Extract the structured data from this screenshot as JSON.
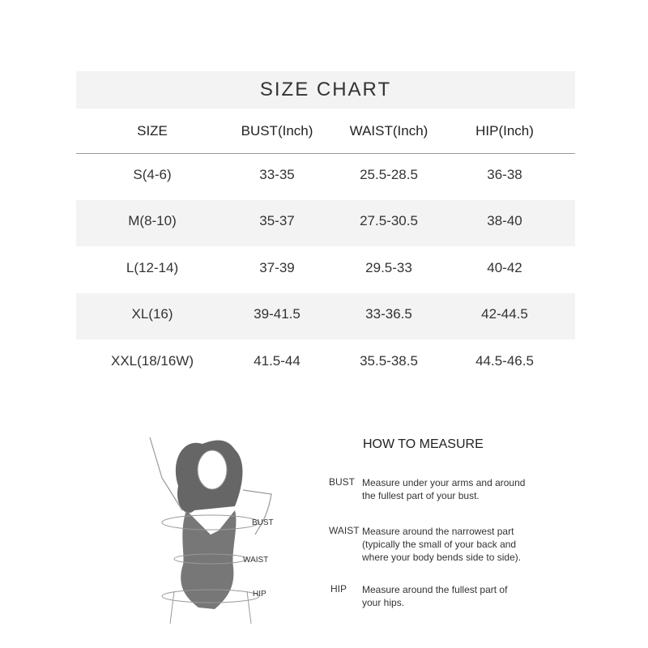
{
  "title": "SIZE CHART",
  "columns": [
    "SIZE",
    "BUST(Inch)",
    "WAIST(Inch)",
    "HIP(Inch)"
  ],
  "rows": [
    [
      "S(4-6)",
      "33-35",
      "25.5-28.5",
      "36-38"
    ],
    [
      "M(8-10)",
      "35-37",
      "27.5-30.5",
      "38-40"
    ],
    [
      "L(12-14)",
      "37-39",
      "29.5-33",
      "40-42"
    ],
    [
      "XL(16)",
      "39-41.5",
      "33-36.5",
      "42-44.5"
    ],
    [
      "XXL(18/16W)",
      "41.5-44",
      "35.5-38.5",
      "44.5-46.5"
    ]
  ],
  "how_to_measure": {
    "heading": "HOW TO MEASURE",
    "items": [
      {
        "term": "BUST",
        "desc": "Measure under your arms and around the fullest part of your bust."
      },
      {
        "term": "WAIST",
        "desc": "Measure around the narrowest part (typically the small of your back and where your body bends side to side)."
      },
      {
        "term": "HIP",
        "desc": "Measure around the fullest part of your hips."
      }
    ]
  },
  "figure_labels": [
    "BUST",
    "WAIST",
    "HIP"
  ]
}
